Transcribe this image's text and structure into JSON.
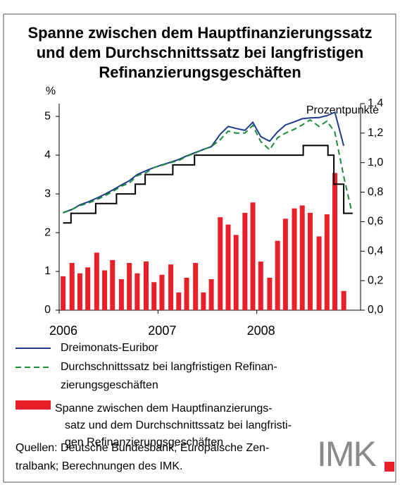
{
  "chart_data": {
    "type": "combo",
    "title": "Spanne zwischen dem Hauptfinanzierungssatz\nund dem Durchschnittssatz bei langfristigen\nRefinanzierungsgeschäften",
    "ylabel": "%",
    "y2label": "Prozentpunkte",
    "x": [
      2006.04,
      2006.13,
      2006.21,
      2006.29,
      2006.38,
      2006.46,
      2006.54,
      2006.63,
      2006.71,
      2006.79,
      2006.88,
      2006.96,
      2007.04,
      2007.13,
      2007.21,
      2007.29,
      2007.38,
      2007.46,
      2007.54,
      2007.63,
      2007.71,
      2007.79,
      2007.88,
      2007.96,
      2008.04,
      2008.13,
      2008.21,
      2008.29,
      2008.38,
      2008.46,
      2008.54,
      2008.63,
      2008.71,
      2008.79,
      2008.88,
      2008.96
    ],
    "xlim": [
      2006,
      2009.05
    ],
    "xticks": [
      2006,
      2007,
      2008
    ],
    "ylim": [
      0,
      5.33
    ],
    "yticks": [
      0,
      1,
      2,
      3,
      4,
      5
    ],
    "y2lim": [
      0,
      1.4
    ],
    "y2ticks": [
      {
        "value": 0,
        "label": "0,0"
      },
      {
        "value": 0.2,
        "label": "0,2"
      },
      {
        "value": 0.4,
        "label": "0,4"
      },
      {
        "value": 0.6,
        "label": "0,6"
      },
      {
        "value": 0.8,
        "label": "0,8"
      },
      {
        "value": 1.0,
        "label": "1,0"
      },
      {
        "value": 1.2,
        "label": "1,2"
      },
      {
        "value": 1.4,
        "label": "1,4"
      }
    ],
    "series": [
      {
        "name": "Dreimonats-Euribor",
        "type": "line",
        "color": "#1f3c8c",
        "values": [
          2.51,
          2.6,
          2.72,
          2.79,
          2.89,
          2.99,
          3.1,
          3.23,
          3.34,
          3.5,
          3.6,
          3.68,
          3.75,
          3.82,
          3.89,
          3.98,
          4.07,
          4.15,
          4.22,
          4.54,
          4.74,
          4.69,
          4.64,
          4.85,
          4.48,
          4.36,
          4.6,
          4.78,
          4.86,
          4.94,
          4.96,
          4.97,
          5.02,
          5.11,
          4.24,
          null
        ]
      },
      {
        "name": "Durchschnittssatz bei langfristigen Refinan-\nzierungsgeschäften",
        "type": "line",
        "dashed": true,
        "color": "#1a8a3c",
        "values": [
          2.52,
          2.6,
          2.7,
          2.76,
          2.85,
          2.95,
          3.06,
          3.2,
          3.28,
          3.47,
          3.55,
          3.68,
          3.74,
          3.81,
          3.86,
          3.97,
          4.06,
          4.15,
          4.22,
          4.4,
          4.62,
          4.57,
          4.57,
          4.77,
          4.35,
          4.14,
          4.45,
          4.57,
          4.67,
          4.78,
          4.91,
          4.74,
          4.88,
          4.59,
          3.45,
          2.55
        ]
      },
      {
        "name": "Spanne zwischen dem Hauptfinanzierungs-\nsatz und dem Durchschnittssatz bei langfristi-\ngen Refinanzierungsgeschäften",
        "type": "bar",
        "axis": "y2",
        "color": "#e8202a",
        "values": [
          0.23,
          0.32,
          0.25,
          0.29,
          0.39,
          0.27,
          0.34,
          0.21,
          0.32,
          0.25,
          0.33,
          0.19,
          0.24,
          0.31,
          0.12,
          0.22,
          0.32,
          0.12,
          0.21,
          0.63,
          0.58,
          0.51,
          0.66,
          0.73,
          0.33,
          0.22,
          0.47,
          0.62,
          0.69,
          0.71,
          0.66,
          0.5,
          0.65,
          0.93,
          0.13,
          null
        ]
      },
      {
        "type": "step",
        "color": "#000000",
        "x": [
          2006.04,
          2006.12,
          2006.37,
          2006.58,
          2006.77,
          2006.87,
          2007.15,
          2007.37,
          2008.47,
          2008.72,
          2008.78,
          2008.88,
          2008.97
        ],
        "values": [
          2.25,
          2.5,
          2.75,
          3.0,
          3.25,
          3.5,
          3.75,
          4.0,
          4.25,
          4.0,
          3.25,
          2.5,
          2.5
        ]
      }
    ],
    "source": "Quellen: Deutsche Bundesbank; Europäische Zen-\ntralbank; Berechnungen des IMK.",
    "logo": "IMK"
  }
}
